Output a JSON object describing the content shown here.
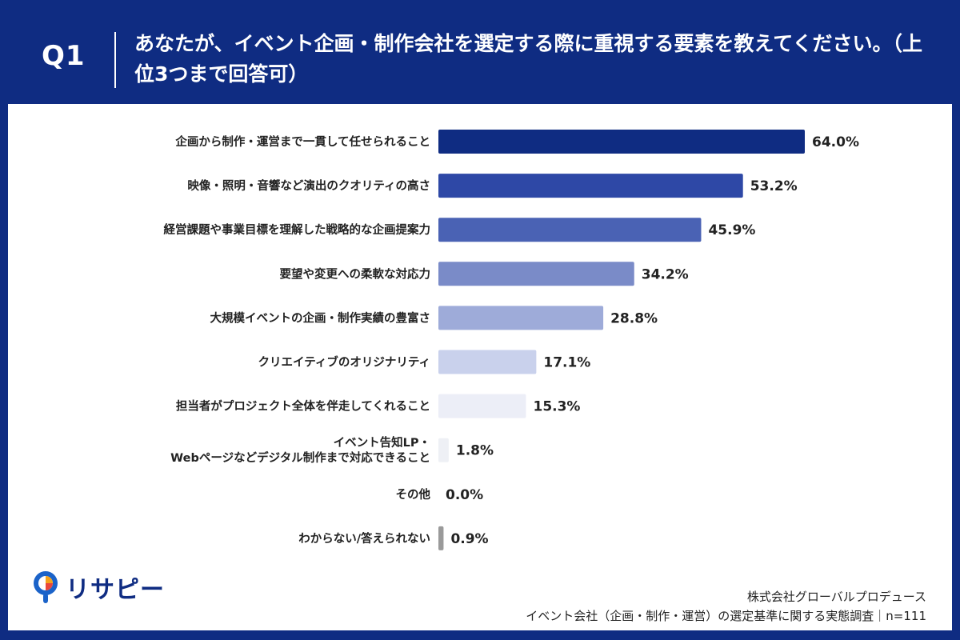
{
  "header": {
    "q_label": "Q1",
    "question": "あなたが、イベント企画・制作会社を選定する際に重視する要素を教えてください。（上位3つまで回答可）"
  },
  "chart_data": {
    "type": "bar",
    "orientation": "horizontal",
    "categories": [
      [
        "企画から制作・運営まで一貫して任せられること"
      ],
      [
        "映像・照明・音響など演出のクオリティの高さ"
      ],
      [
        "経営課題や事業目標を理解した戦略的な企画提案力"
      ],
      [
        "要望や変更への柔軟な対応力"
      ],
      [
        "大規模イベントの企画・制作実績の豊富さ"
      ],
      [
        "クリエイティブのオリジナリティ"
      ],
      [
        "担当者がプロジェクト全体を伴走してくれること"
      ],
      [
        "イベント告知LP・",
        "Webページなどデジタル制作まで対応できること"
      ],
      [
        "その他"
      ],
      [
        "わからない/答えられない"
      ]
    ],
    "values": [
      64.0,
      53.2,
      45.9,
      34.2,
      28.8,
      17.1,
      15.3,
      1.8,
      0.0,
      0.9
    ],
    "value_labels": [
      "64.0%",
      "53.2%",
      "45.9%",
      "34.2%",
      "28.8%",
      "17.1%",
      "15.3%",
      "1.8%",
      "0.0%",
      "0.9%"
    ],
    "bar_colors": [
      "#0f2c82",
      "#2e48a6",
      "#4a62b4",
      "#7a8bc8",
      "#9eabd9",
      "#c9d1ec",
      "#eceef7",
      "#eef0f5",
      "#eeeeee",
      "#9a9a9a"
    ],
    "xlim": [
      0,
      64
    ],
    "grid": false,
    "legend": "none"
  },
  "logo": {
    "text": "リサピー"
  },
  "footer": {
    "line1": "株式会社グローバルプロデュース",
    "line2": "イベント会社（企画・制作・運営）の選定基準に関する実態調査｜n=111"
  }
}
